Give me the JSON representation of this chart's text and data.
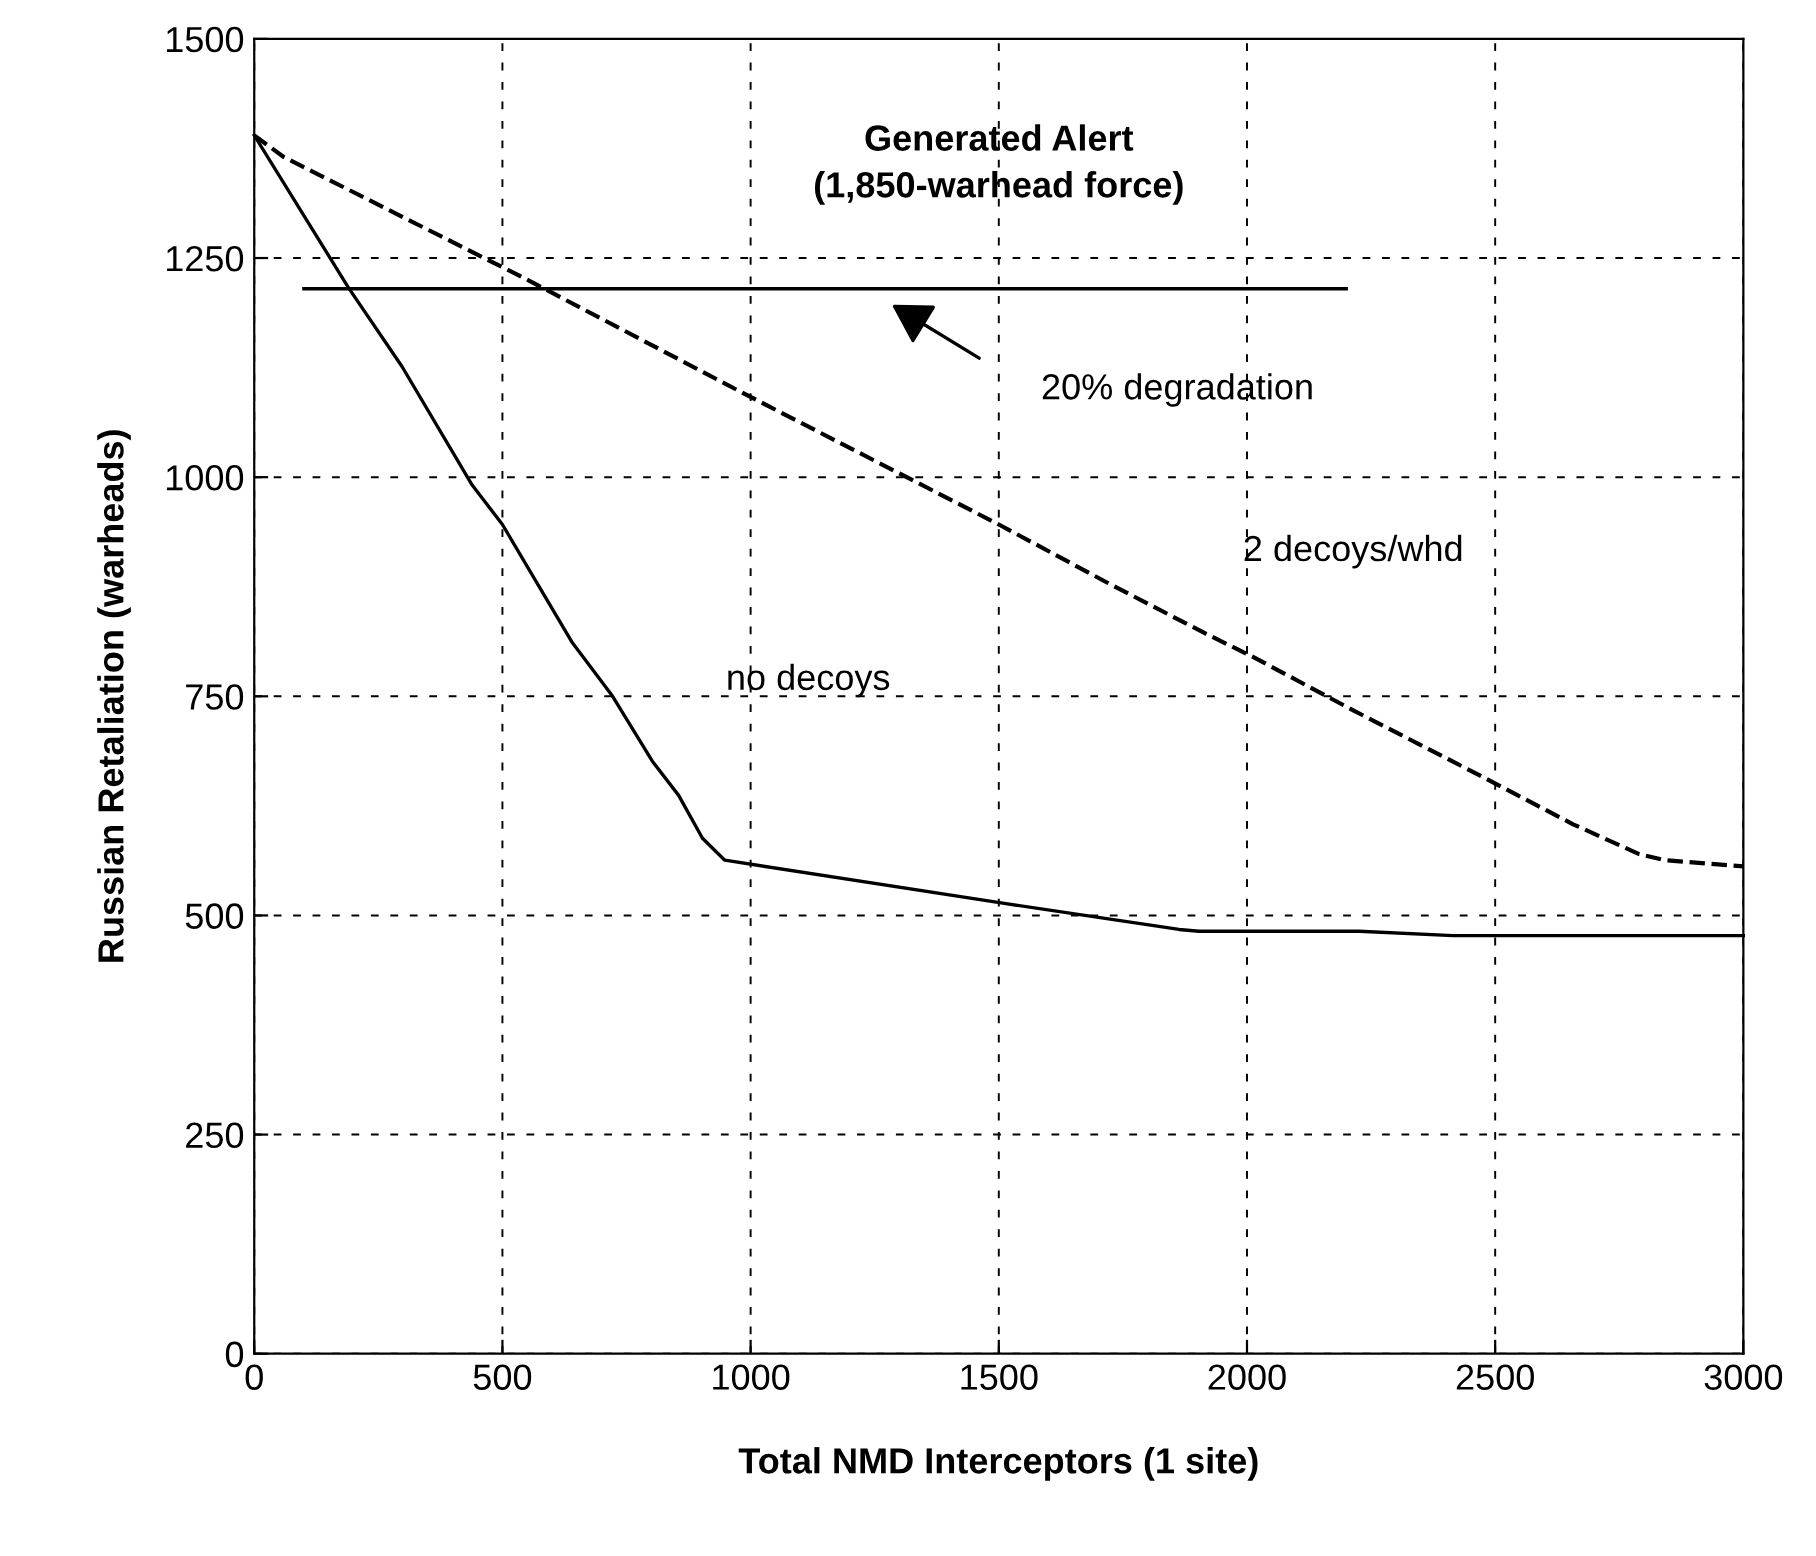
{
  "chart_data": {
    "type": "line",
    "title": "Generated Alert\n(1,850-warhead force)",
    "xlabel": "Total NMD Interceptors (1 site)",
    "ylabel": "Russian Retaliation (warheads)",
    "xlim": [
      0,
      3000
    ],
    "ylim": [
      0,
      1500
    ],
    "xticks": [
      0,
      500,
      1000,
      1500,
      2000,
      2500,
      3000
    ],
    "yticks": [
      0,
      250,
      500,
      750,
      1000,
      1250,
      1500
    ],
    "grid": true,
    "series": [
      {
        "color": "#000000",
        "line_style": "solid",
        "x": [
          0,
          190,
          298,
          439,
          500,
          641,
          722,
          802,
          855,
          903,
          948,
          1508,
          1863,
          1903,
          2226,
          2415,
          3000
        ],
        "values": [
          1390,
          1216,
          1126,
          991,
          946,
          811,
          750,
          676,
          637,
          588,
          563,
          514,
          484,
          482,
          482,
          477,
          477
        ]
      },
      {
        "color": "#000000",
        "line_style": "dashed",
        "x": [
          0,
          60,
          544,
          988,
          1500,
          1714,
          1915,
          2012,
          2214,
          2468,
          2657,
          2790,
          2843,
          3000
        ],
        "values": [
          1390,
          1365,
          1227,
          1095,
          946,
          881,
          822,
          795,
          734,
          660,
          604,
          570,
          563,
          556
        ]
      },
      {
        "color": "#000000",
        "line_style": "solid",
        "x": [
          100,
          2200
        ],
        "values": [
          1215,
          1215
        ]
      }
    ],
    "annotations": [
      "no decoys",
      "2 decoys/whd",
      "20% degradation"
    ]
  }
}
